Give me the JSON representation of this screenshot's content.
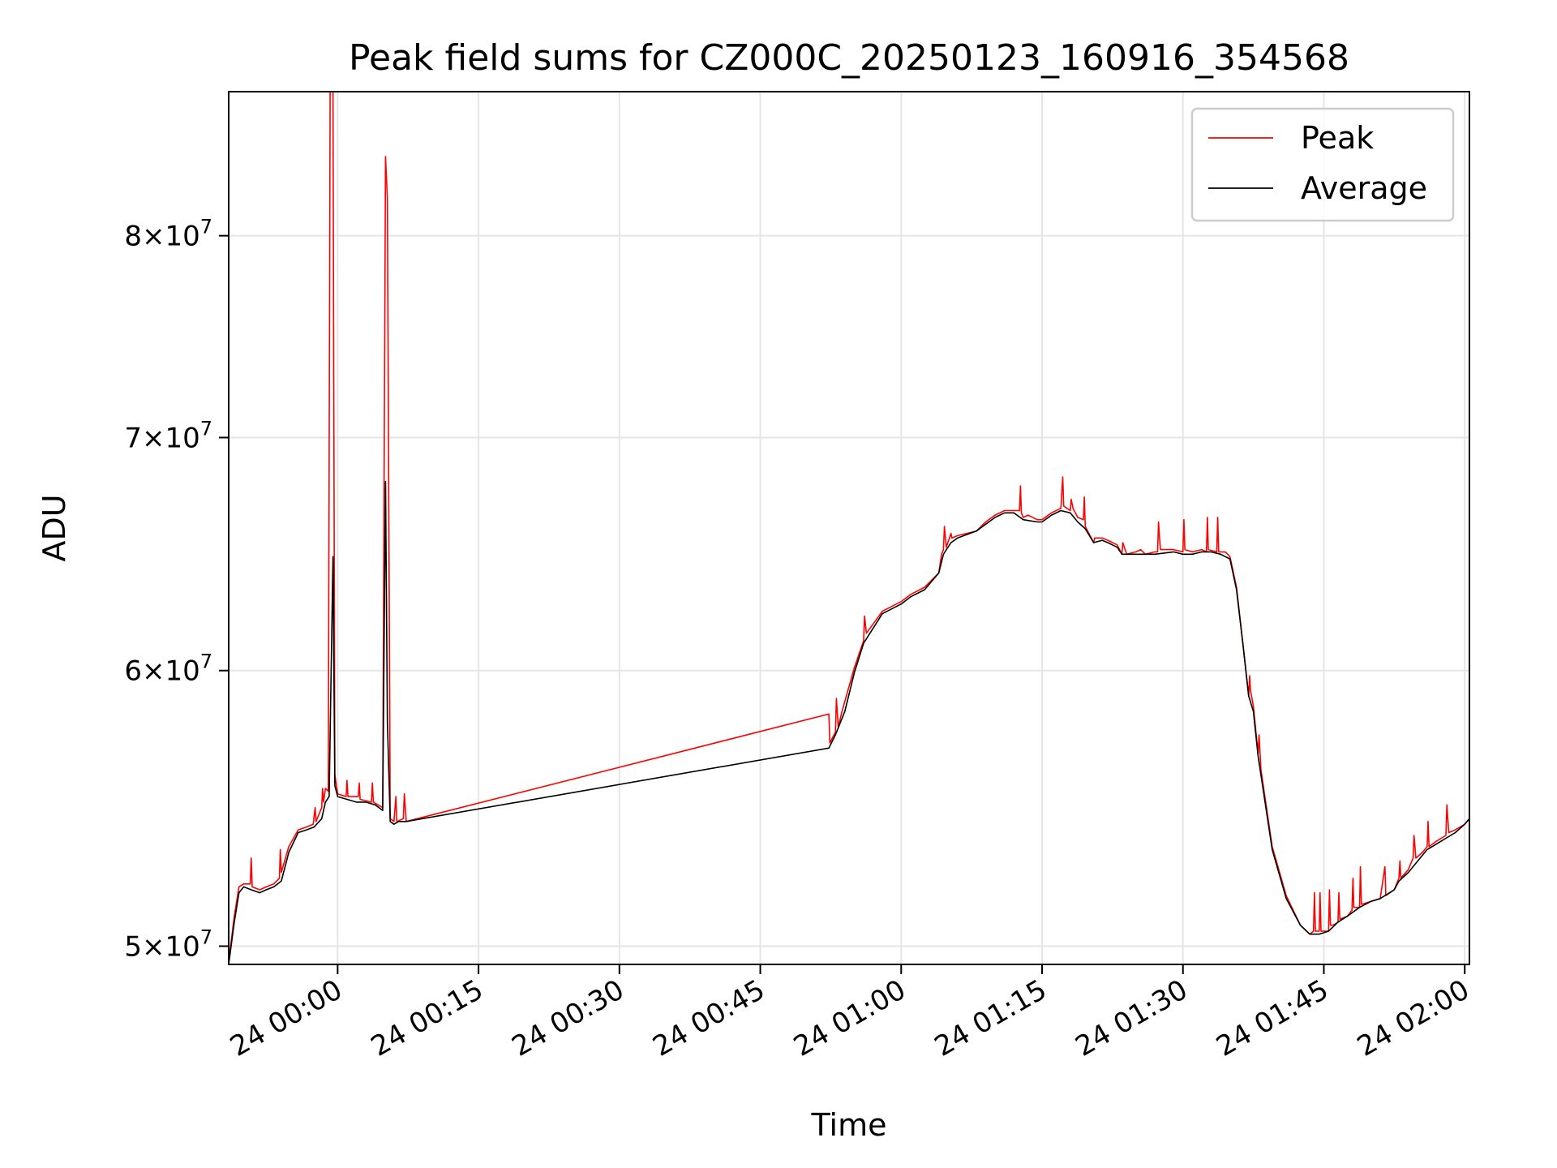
{
  "chart_data": {
    "type": "line",
    "title": "Peak field sums for CZ000C_20250123_160916_354568",
    "xlabel": "Time",
    "ylabel": "ADU",
    "yscale": "log",
    "x_unit": "minutes after 24 00:00",
    "xlim": [
      -11.6,
      120.5
    ],
    "ylim": [
      49400000,
      88000000
    ],
    "grid": true,
    "legend_position": "top-right",
    "x_ticks": [
      {
        "value": 0,
        "label": "24 00:00"
      },
      {
        "value": 15,
        "label": "24 00:15"
      },
      {
        "value": 30,
        "label": "24 00:30"
      },
      {
        "value": 45,
        "label": "24 00:45"
      },
      {
        "value": 60,
        "label": "24 01:00"
      },
      {
        "value": 75,
        "label": "24 01:15"
      },
      {
        "value": 90,
        "label": "24 01:30"
      },
      {
        "value": 105,
        "label": "24 01:45"
      },
      {
        "value": 120,
        "label": "24 02:00"
      }
    ],
    "y_ticks": [
      {
        "value": 50000000,
        "mant": "5",
        "base": "10",
        "exp": "7"
      },
      {
        "value": 60000000,
        "mant": "6",
        "base": "10",
        "exp": "7"
      },
      {
        "value": 70000000,
        "mant": "7",
        "base": "10",
        "exp": "7"
      },
      {
        "value": 80000000,
        "mant": "8",
        "base": "10",
        "exp": "7"
      }
    ],
    "series": [
      {
        "name": "Peak",
        "color": "#ff0000",
        "points": [
          [
            -11.6,
            49500000
          ],
          [
            -11.0,
            51000000
          ],
          [
            -10.5,
            52000000
          ],
          [
            -10.0,
            52100000
          ],
          [
            -9.3,
            52100000
          ],
          [
            -9.2,
            53000000
          ],
          [
            -9.1,
            52000000
          ],
          [
            -8.3,
            51900000
          ],
          [
            -7.6,
            52000000
          ],
          [
            -6.8,
            52100000
          ],
          [
            -6.2,
            52300000
          ],
          [
            -6.1,
            53300000
          ],
          [
            -6.0,
            52500000
          ],
          [
            -5.2,
            53400000
          ],
          [
            -4.2,
            54000000
          ],
          [
            -3.3,
            54100000
          ],
          [
            -2.6,
            54200000
          ],
          [
            -2.4,
            54800000
          ],
          [
            -2.3,
            54300000
          ],
          [
            -1.7,
            54800000
          ],
          [
            -1.6,
            55500000
          ],
          [
            -1.5,
            55000000
          ],
          [
            -1.3,
            55500000
          ],
          [
            -1.0,
            55400000
          ],
          [
            -0.8,
            88000000
          ],
          [
            -0.5,
            88000000
          ],
          [
            -0.3,
            56000000
          ],
          [
            0.0,
            55300000
          ],
          [
            0.9,
            55200000
          ],
          [
            1.0,
            55800000
          ],
          [
            1.1,
            55200000
          ],
          [
            2.2,
            55200000
          ],
          [
            2.3,
            55700000
          ],
          [
            2.4,
            55100000
          ],
          [
            3.6,
            55000000
          ],
          [
            3.7,
            55700000
          ],
          [
            3.8,
            55000000
          ],
          [
            4.8,
            54800000
          ],
          [
            5.1,
            84300000
          ],
          [
            5.3,
            82000000
          ],
          [
            5.6,
            54400000
          ],
          [
            6.0,
            54300000
          ],
          [
            6.2,
            55200000
          ],
          [
            6.3,
            54300000
          ],
          [
            7.0,
            54400000
          ],
          [
            7.1,
            55300000
          ],
          [
            7.3,
            54300000
          ],
          [
            52.3,
            58300000
          ],
          [
            52.4,
            57200000
          ],
          [
            53.0,
            57600000
          ],
          [
            53.1,
            58900000
          ],
          [
            53.3,
            57800000
          ],
          [
            53.7,
            58400000
          ],
          [
            55.0,
            60100000
          ],
          [
            56.0,
            61200000
          ],
          [
            56.1,
            62200000
          ],
          [
            56.3,
            61500000
          ],
          [
            58.0,
            62400000
          ],
          [
            60.0,
            62800000
          ],
          [
            61.0,
            63100000
          ],
          [
            62.5,
            63400000
          ],
          [
            64.0,
            64000000
          ],
          [
            64.3,
            64800000
          ],
          [
            64.5,
            65000000
          ],
          [
            64.6,
            66000000
          ],
          [
            64.8,
            65100000
          ],
          [
            65.3,
            65700000
          ],
          [
            65.4,
            65500000
          ],
          [
            66.0,
            65600000
          ],
          [
            68.0,
            65800000
          ],
          [
            69.0,
            66200000
          ],
          [
            70.0,
            66500000
          ],
          [
            71.0,
            66700000
          ],
          [
            72.0,
            66700000
          ],
          [
            72.6,
            66700000
          ],
          [
            72.7,
            67800000
          ],
          [
            72.8,
            66600000
          ],
          [
            73.0,
            66400000
          ],
          [
            73.5,
            66500000
          ],
          [
            74.5,
            66300000
          ],
          [
            75.0,
            66300000
          ],
          [
            76.0,
            66600000
          ],
          [
            77.0,
            66800000
          ],
          [
            77.2,
            68200000
          ],
          [
            77.3,
            66900000
          ],
          [
            78.0,
            66700000
          ],
          [
            78.1,
            67200000
          ],
          [
            78.3,
            66800000
          ],
          [
            78.8,
            66400000
          ],
          [
            79.4,
            66300000
          ],
          [
            79.5,
            67300000
          ],
          [
            79.6,
            66000000
          ],
          [
            80.5,
            65300000
          ],
          [
            80.6,
            65500000
          ],
          [
            81.4,
            65500000
          ],
          [
            82.0,
            65400000
          ],
          [
            83.0,
            65200000
          ],
          [
            83.5,
            64800000
          ],
          [
            83.6,
            65300000
          ],
          [
            84.0,
            64800000
          ],
          [
            85.0,
            64900000
          ],
          [
            85.5,
            65000000
          ],
          [
            86.0,
            64800000
          ],
          [
            87.0,
            64900000
          ],
          [
            87.3,
            64900000
          ],
          [
            87.4,
            66200000
          ],
          [
            87.6,
            65000000
          ],
          [
            89.0,
            65000000
          ],
          [
            90.0,
            64900000
          ],
          [
            90.1,
            66300000
          ],
          [
            90.2,
            65000000
          ],
          [
            91.0,
            64900000
          ],
          [
            92.0,
            65000000
          ],
          [
            92.5,
            64900000
          ],
          [
            92.6,
            66400000
          ],
          [
            92.7,
            65000000
          ],
          [
            93.6,
            64900000
          ],
          [
            93.7,
            66400000
          ],
          [
            93.8,
            64900000
          ],
          [
            94.5,
            64900000
          ],
          [
            95.0,
            64700000
          ],
          [
            95.7,
            63400000
          ],
          [
            96.4,
            61000000
          ],
          [
            97.0,
            59000000
          ],
          [
            97.1,
            59800000
          ],
          [
            97.2,
            59200000
          ],
          [
            97.5,
            58600000
          ],
          [
            98.0,
            56800000
          ],
          [
            98.1,
            57500000
          ],
          [
            98.3,
            56200000
          ],
          [
            99.5,
            53400000
          ],
          [
            101.0,
            51700000
          ],
          [
            102.5,
            50700000
          ],
          [
            103.5,
            50400000
          ],
          [
            103.9,
            50500000
          ],
          [
            104.0,
            51800000
          ],
          [
            104.1,
            50500000
          ],
          [
            104.5,
            50500000
          ],
          [
            104.6,
            51800000
          ],
          [
            104.7,
            50500000
          ],
          [
            105.5,
            50500000
          ],
          [
            105.6,
            51900000
          ],
          [
            105.7,
            50700000
          ],
          [
            106.0,
            50700000
          ],
          [
            106.5,
            50800000
          ],
          [
            106.6,
            51800000
          ],
          [
            106.7,
            50900000
          ],
          [
            107.5,
            51000000
          ],
          [
            108.0,
            51200000
          ],
          [
            108.1,
            52300000
          ],
          [
            108.2,
            51300000
          ],
          [
            108.8,
            51300000
          ],
          [
            108.9,
            52700000
          ],
          [
            109.0,
            51400000
          ],
          [
            110.0,
            51500000
          ],
          [
            111.0,
            51600000
          ],
          [
            111.5,
            52700000
          ],
          [
            111.6,
            51700000
          ],
          [
            112.5,
            51900000
          ],
          [
            113.0,
            52300000
          ],
          [
            113.1,
            52900000
          ],
          [
            113.2,
            52300000
          ],
          [
            114.0,
            52600000
          ],
          [
            114.5,
            53000000
          ],
          [
            114.6,
            53800000
          ],
          [
            114.8,
            53000000
          ],
          [
            115.5,
            53200000
          ],
          [
            116.0,
            53400000
          ],
          [
            116.1,
            54300000
          ],
          [
            116.2,
            53400000
          ],
          [
            117.0,
            53600000
          ],
          [
            118.0,
            53800000
          ],
          [
            118.1,
            54900000
          ],
          [
            118.3,
            53900000
          ],
          [
            119.0,
            54000000
          ],
          [
            120.0,
            54200000
          ],
          [
            120.5,
            54400000
          ]
        ]
      },
      {
        "name": "Average",
        "color": "#000000",
        "points": [
          [
            -11.6,
            49400000
          ],
          [
            -11.0,
            50800000
          ],
          [
            -10.5,
            51800000
          ],
          [
            -10.0,
            52000000
          ],
          [
            -9.2,
            51900000
          ],
          [
            -8.3,
            51800000
          ],
          [
            -7.6,
            51900000
          ],
          [
            -6.8,
            52000000
          ],
          [
            -6.0,
            52200000
          ],
          [
            -5.2,
            53200000
          ],
          [
            -4.2,
            53900000
          ],
          [
            -3.3,
            54000000
          ],
          [
            -2.5,
            54100000
          ],
          [
            -1.7,
            54400000
          ],
          [
            -1.3,
            55000000
          ],
          [
            -0.9,
            55200000
          ],
          [
            -0.5,
            64700000
          ],
          [
            -0.3,
            55600000
          ],
          [
            0.0,
            55200000
          ],
          [
            1.0,
            55100000
          ],
          [
            2.0,
            55000000
          ],
          [
            3.0,
            55000000
          ],
          [
            4.0,
            54900000
          ],
          [
            4.8,
            54700000
          ],
          [
            5.1,
            68000000
          ],
          [
            5.3,
            58000000
          ],
          [
            5.6,
            54300000
          ],
          [
            6.0,
            54200000
          ],
          [
            6.5,
            54300000
          ],
          [
            7.0,
            54300000
          ],
          [
            7.3,
            54300000
          ],
          [
            52.3,
            57000000
          ],
          [
            53.0,
            57500000
          ],
          [
            54.0,
            58400000
          ],
          [
            55.0,
            59900000
          ],
          [
            56.0,
            61100000
          ],
          [
            58.0,
            62300000
          ],
          [
            60.0,
            62700000
          ],
          [
            61.0,
            63000000
          ],
          [
            62.5,
            63300000
          ],
          [
            64.0,
            64000000
          ],
          [
            64.5,
            64800000
          ],
          [
            65.3,
            65300000
          ],
          [
            66.0,
            65500000
          ],
          [
            68.0,
            65800000
          ],
          [
            69.0,
            66100000
          ],
          [
            70.0,
            66400000
          ],
          [
            71.0,
            66600000
          ],
          [
            72.0,
            66600000
          ],
          [
            73.0,
            66300000
          ],
          [
            74.5,
            66200000
          ],
          [
            75.0,
            66200000
          ],
          [
            76.0,
            66500000
          ],
          [
            77.0,
            66700000
          ],
          [
            78.0,
            66600000
          ],
          [
            78.8,
            66200000
          ],
          [
            79.6,
            65900000
          ],
          [
            80.5,
            65300000
          ],
          [
            81.4,
            65400000
          ],
          [
            82.0,
            65300000
          ],
          [
            83.0,
            65100000
          ],
          [
            83.5,
            64800000
          ],
          [
            85.0,
            64800000
          ],
          [
            86.0,
            64800000
          ],
          [
            87.0,
            64800000
          ],
          [
            89.0,
            64900000
          ],
          [
            90.0,
            64800000
          ],
          [
            91.0,
            64800000
          ],
          [
            92.0,
            64900000
          ],
          [
            93.0,
            64900000
          ],
          [
            94.0,
            64800000
          ],
          [
            95.0,
            64600000
          ],
          [
            95.7,
            63300000
          ],
          [
            96.4,
            61000000
          ],
          [
            97.0,
            59000000
          ],
          [
            97.5,
            58400000
          ],
          [
            98.0,
            56700000
          ],
          [
            98.3,
            56000000
          ],
          [
            99.5,
            53300000
          ],
          [
            101.0,
            51600000
          ],
          [
            102.5,
            50700000
          ],
          [
            103.5,
            50400000
          ],
          [
            104.5,
            50400000
          ],
          [
            105.5,
            50500000
          ],
          [
            106.5,
            50800000
          ],
          [
            107.5,
            51000000
          ],
          [
            108.8,
            51300000
          ],
          [
            110.0,
            51500000
          ],
          [
            111.0,
            51600000
          ],
          [
            112.5,
            51900000
          ],
          [
            113.0,
            52200000
          ],
          [
            114.0,
            52500000
          ],
          [
            115.5,
            53100000
          ],
          [
            116.0,
            53300000
          ],
          [
            117.0,
            53500000
          ],
          [
            118.0,
            53700000
          ],
          [
            119.0,
            53900000
          ],
          [
            120.0,
            54200000
          ],
          [
            120.5,
            54400000
          ]
        ]
      }
    ]
  }
}
